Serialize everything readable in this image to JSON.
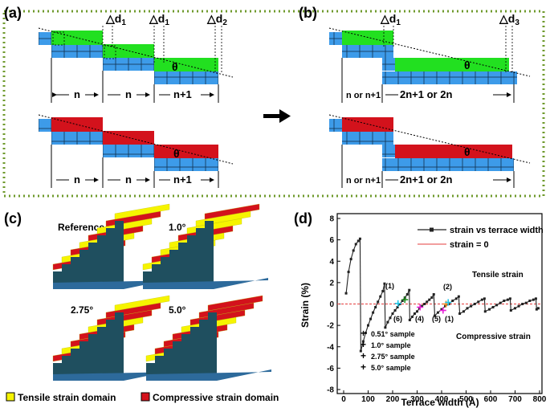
{
  "colors": {
    "blue": "#3d9be9",
    "green": "#22e020",
    "red": "#d3121c",
    "yellow": "#f6f400",
    "dark_teal": "#1f4f5f",
    "frame_green": "#6f9a2c",
    "strain_line": "#222222",
    "zero_line": "#e43d3d",
    "orange": "#ff8c1a",
    "cyan": "#21c6e8",
    "magenta": "#e821d8",
    "dark_green": "#1d8a1d",
    "navy": "#0d1a6b"
  },
  "panel_a": {
    "label": "(a)",
    "d1": "△d",
    "d1_sub": "1",
    "d2": "△d",
    "d2_sub": "2",
    "theta": "θ",
    "n": "n",
    "n_plus_1": "n+1"
  },
  "panel_b": {
    "label": "(b)",
    "d1": "△d",
    "d1_sub": "1",
    "d3": "△d",
    "d3_sub": "3",
    "theta": "θ",
    "left_width": "n or n+1",
    "right_width": "2n+1  or  2n"
  },
  "panel_c": {
    "label": "(c)",
    "titles": [
      "Reference (0.51°)",
      "1.0°",
      "2.75°",
      "5.0°"
    ],
    "legend_tensile": "Tensile strain domain",
    "legend_compressive": "Compressive strain domain"
  },
  "panel_d": {
    "label": "(d)",
    "legend_series": "strain vs terrace width",
    "legend_zero": "strain = 0",
    "tensile_label": "Tensile strain",
    "compressive_label": "Compressive strain",
    "sample_labels": [
      "0.51° sample",
      "1.0° sample",
      "2.75° sample",
      "5.0° sample"
    ],
    "point_tags": [
      "(1)",
      "(2)",
      "(4)",
      "(5)",
      "(1)",
      "(6)"
    ]
  },
  "chart_data": {
    "type": "line",
    "xlabel": "Terrace width (Å)",
    "ylabel": "Strain (%)",
    "xlim": [
      0,
      800
    ],
    "ylim": [
      -8,
      8
    ],
    "xticks": [
      "0",
      "100",
      "200",
      "300",
      "400",
      "500",
      "600",
      "700",
      "800"
    ],
    "yticks": [
      "8",
      "6",
      "4",
      "2",
      "0",
      "-2",
      "-4",
      "-6",
      "-8"
    ],
    "series": [
      {
        "name": "strain vs terrace width",
        "segments": [
          [
            [
              10,
              1.0
            ],
            [
              20,
              3.0
            ],
            [
              30,
              4.2
            ],
            [
              40,
              5.0
            ],
            [
              50,
              5.6
            ],
            [
              60,
              5.9
            ],
            [
              67,
              6.1
            ]
          ],
          [
            [
              70,
              -4.4
            ],
            [
              80,
              -3.5
            ],
            [
              90,
              -2.7
            ],
            [
              100,
              -2.0
            ],
            [
              110,
              -1.4
            ],
            [
              120,
              -0.8
            ],
            [
              130,
              -0.3
            ],
            [
              140,
              0.2
            ],
            [
              150,
              0.7
            ],
            [
              160,
              1.2
            ],
            [
              167,
              1.9
            ]
          ],
          [
            [
              170,
              -2.2
            ],
            [
              180,
              -1.7
            ],
            [
              190,
              -1.3
            ],
            [
              200,
              -0.9
            ],
            [
              210,
              -0.6
            ],
            [
              220,
              -0.3
            ],
            [
              230,
              0.0
            ],
            [
              240,
              0.3
            ],
            [
              250,
              0.6
            ],
            [
              260,
              0.9
            ],
            [
              268,
              1.3
            ]
          ],
          [
            [
              270,
              -1.5
            ],
            [
              280,
              -1.2
            ],
            [
              290,
              -0.9
            ],
            [
              300,
              -0.7
            ],
            [
              310,
              -0.4
            ],
            [
              320,
              -0.2
            ],
            [
              330,
              0.0
            ],
            [
              340,
              0.2
            ],
            [
              350,
              0.4
            ],
            [
              360,
              0.6
            ],
            [
              368,
              0.9
            ]
          ],
          [
            [
              372,
              -1.1
            ],
            [
              385,
              -0.8
            ],
            [
              400,
              -0.5
            ],
            [
              415,
              -0.2
            ],
            [
              430,
              0.0
            ],
            [
              445,
              0.3
            ],
            [
              460,
              0.5
            ],
            [
              470,
              0.7
            ]
          ],
          [
            [
              474,
              -0.9
            ],
            [
              490,
              -0.7
            ],
            [
              505,
              -0.4
            ],
            [
              520,
              -0.2
            ],
            [
              535,
              0.0
            ],
            [
              550,
              0.2
            ],
            [
              565,
              0.4
            ],
            [
              575,
              0.5
            ]
          ],
          [
            [
              578,
              -0.7
            ],
            [
              595,
              -0.5
            ],
            [
              610,
              -0.3
            ],
            [
              625,
              -0.1
            ],
            [
              640,
              0.1
            ],
            [
              655,
              0.3
            ],
            [
              670,
              0.4
            ],
            [
              680,
              0.5
            ]
          ],
          [
            [
              683,
              -0.6
            ],
            [
              700,
              -0.4
            ],
            [
              715,
              -0.2
            ],
            [
              730,
              0.0
            ],
            [
              745,
              0.1
            ],
            [
              760,
              0.3
            ],
            [
              775,
              0.4
            ],
            [
              785,
              0.5
            ]
          ],
          [
            [
              788,
              -0.5
            ],
            [
              795,
              -0.4
            ]
          ]
        ]
      },
      {
        "name": "strain = 0",
        "y": 0
      }
    ],
    "samples": [
      {
        "name": "0.51° sample",
        "x": 418,
        "y": 0.0
      },
      {
        "name": "1.0° sample",
        "x": 222,
        "y": 0.05
      },
      {
        "name": "1.0° sample",
        "x": 427,
        "y": 0.15
      },
      {
        "name": "2.75° sample",
        "x": 312,
        "y": -0.3
      },
      {
        "name": "2.75° sample",
        "x": 406,
        "y": -0.6
      },
      {
        "name": "5.0° sample",
        "x": 250,
        "y": 0.4
      }
    ]
  }
}
